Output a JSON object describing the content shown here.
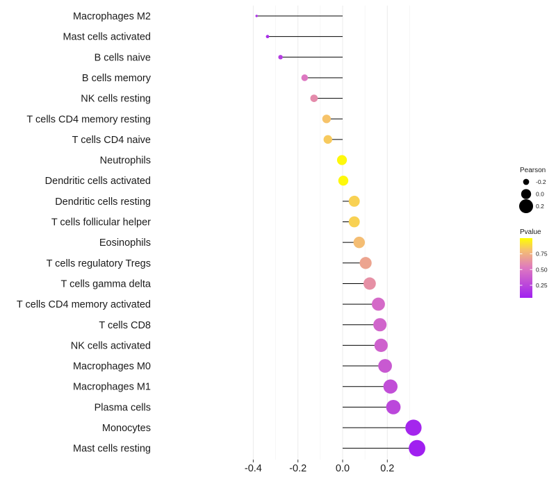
{
  "chart_data": {
    "type": "lollipop",
    "title": "",
    "xlabel": "",
    "ylabel": "",
    "xlim": [
      -0.42,
      0.34
    ],
    "x_ticks": [
      -0.4,
      -0.2,
      0.0,
      0.2
    ],
    "x_tick_labels": [
      "-0.4",
      "-0.2",
      "0.0",
      "0.2"
    ],
    "categories": [
      "Macrophages M2",
      "Mast cells activated",
      "B cells naive",
      "B cells memory",
      "NK cells resting",
      "T cells CD4 memory resting",
      "T cells CD4 naive",
      "Neutrophils",
      "Dendritic cells activated",
      "Dendritic cells resting",
      "T cells follicular helper",
      "Eosinophils",
      "T cells regulatory  Tregs",
      "T cells gamma delta",
      "T cells CD4 memory activated",
      "T cells CD8",
      "NK cells activated",
      "Macrophages M0",
      "Macrophages M1",
      "Plasma cells",
      "Monocytes",
      "Mast cells resting"
    ],
    "pearson": [
      -0.385,
      -0.336,
      -0.278,
      -0.17,
      -0.128,
      -0.072,
      -0.066,
      -0.003,
      0.003,
      0.052,
      0.052,
      0.074,
      0.103,
      0.121,
      0.16,
      0.167,
      0.172,
      0.19,
      0.214,
      0.227,
      0.317,
      0.333
    ],
    "pvalue": [
      0.15,
      0.12,
      0.2,
      0.52,
      0.6,
      0.82,
      0.84,
      0.98,
      0.98,
      0.86,
      0.86,
      0.8,
      0.7,
      0.62,
      0.45,
      0.42,
      0.4,
      0.36,
      0.3,
      0.26,
      0.08,
      0.05
    ],
    "legend": {
      "size_title": "Pearson",
      "size_labels": [
        "-0.2",
        "0.0",
        "0.2"
      ],
      "color_title": "Pvalue",
      "color_labels": [
        "0.75",
        "0.50",
        "0.25"
      ],
      "color_values": [
        0.75,
        0.5,
        0.25
      ],
      "color_range": [
        0.05,
        1.0
      ],
      "low_color": "#a020f0",
      "high_color": "#ffff00"
    }
  }
}
